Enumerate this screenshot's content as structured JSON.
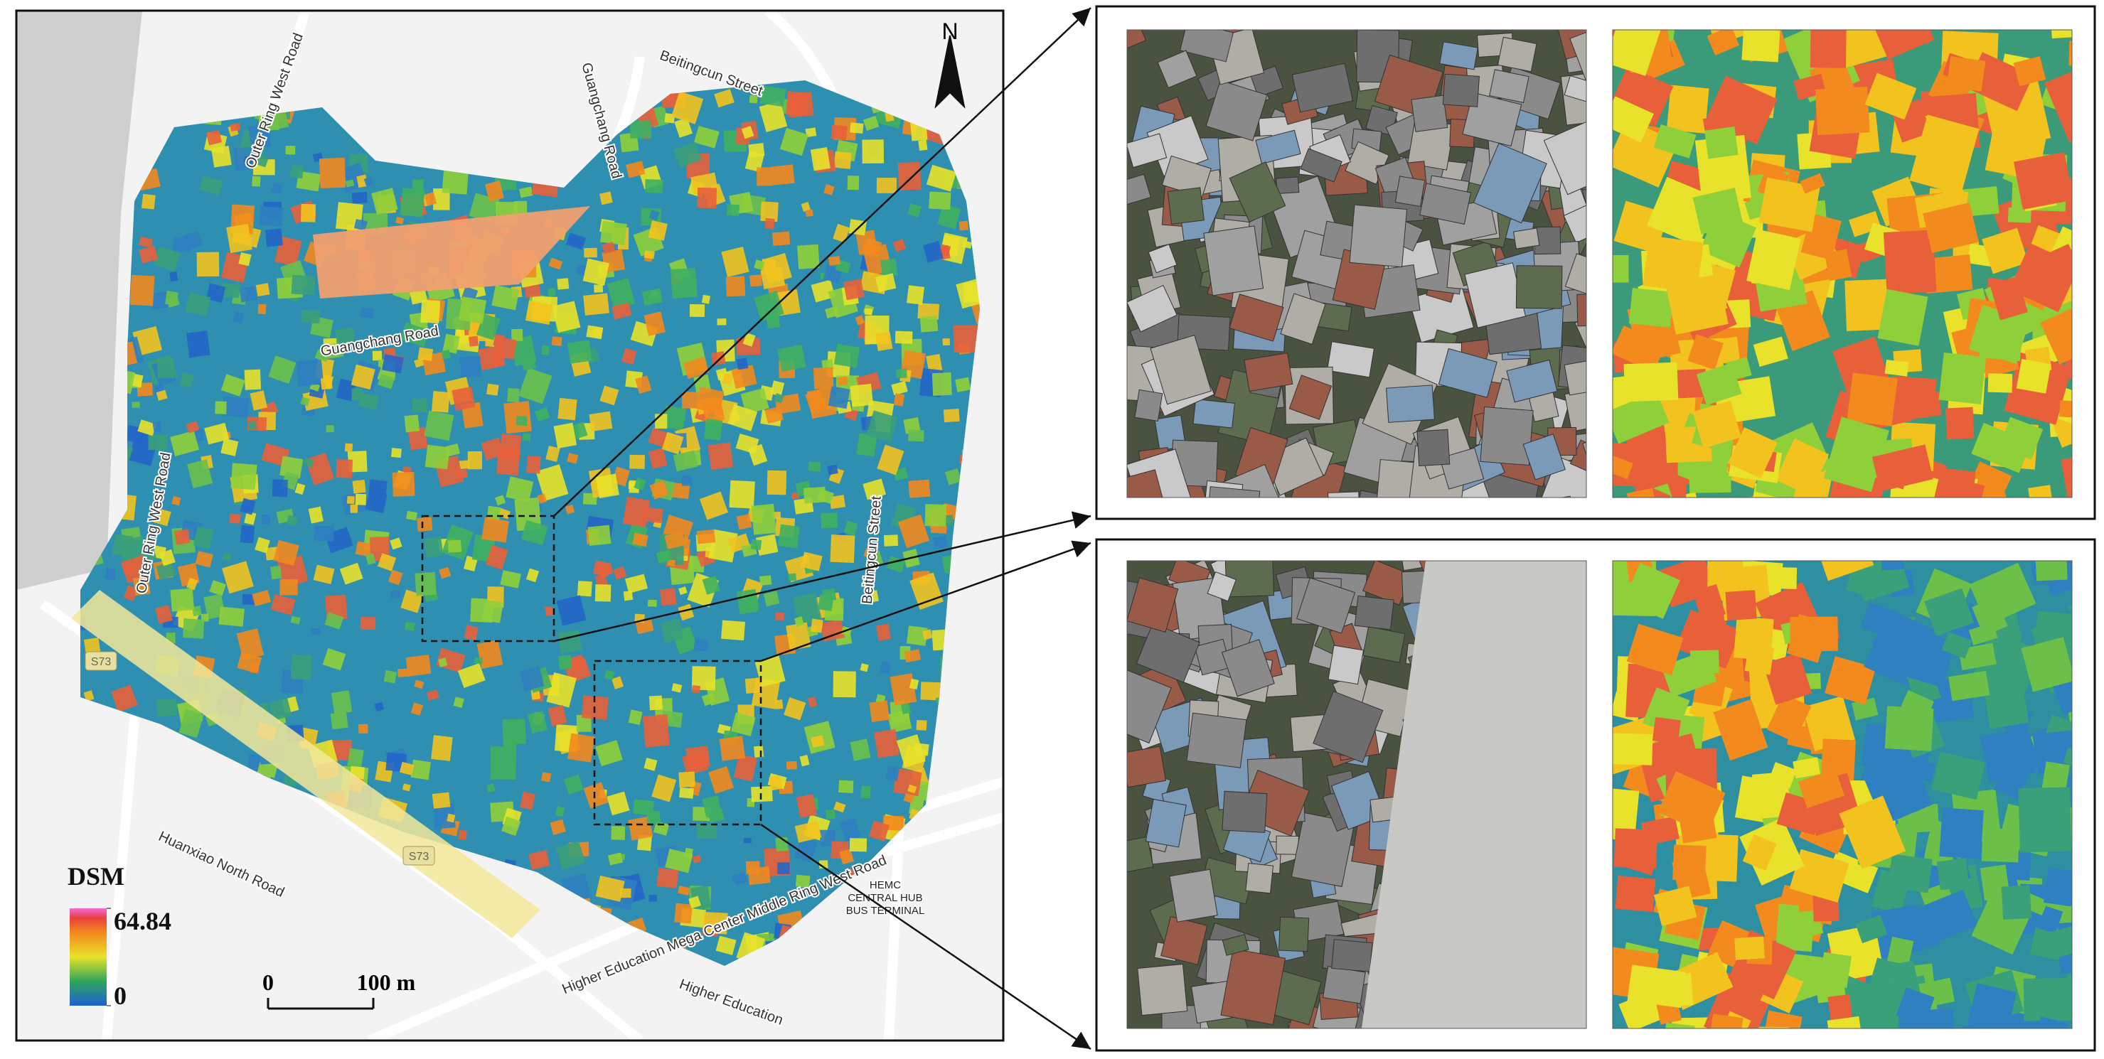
{
  "map": {
    "north": "N",
    "roads": [
      "Outer Ring West Road",
      "Guangchang Road",
      "Beitingcun Street",
      "Guangchang Road",
      "Outer Ring West Road",
      "Beitingcun Street",
      "Huanxiao North Road",
      "Higher Education Mega Center Middle Ring West Road",
      "Higher Education"
    ],
    "road_badges": [
      "S73",
      "S73"
    ],
    "terminal": [
      "HEMC",
      "CENTRAL HUB",
      "BUS TERMINAL"
    ]
  },
  "legend": {
    "title": "DSM",
    "max": 64.84,
    "min": 0
  },
  "scale_bar": {
    "labels": [
      "0",
      "100 m"
    ]
  }
}
